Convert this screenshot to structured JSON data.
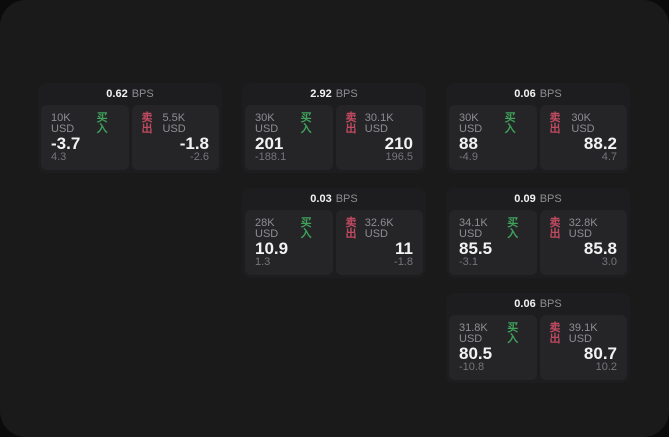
{
  "labels": {
    "bps_unit": "BPS",
    "buy": "买入",
    "sell": "卖出"
  },
  "colors": {
    "buy_green": "#3fa15a",
    "sell_red": "#c04a60",
    "page_bg": "#1a1a1b",
    "card_bg": "#1d1d1f",
    "panel_bg": "#252528"
  },
  "cards": [
    {
      "bps": "0.62",
      "buy": {
        "amount": "10K USD",
        "price": "-3.7",
        "delta": "4.3"
      },
      "sell": {
        "amount": "5.5K USD",
        "price": "-1.8",
        "delta": "-2.6"
      }
    },
    {
      "bps": "2.92",
      "buy": {
        "amount": "30K USD",
        "price": "201",
        "delta": "-188.1"
      },
      "sell": {
        "amount": "30.1K USD",
        "price": "210",
        "delta": "196.5"
      }
    },
    {
      "bps": "0.06",
      "buy": {
        "amount": "30K USD",
        "price": "88",
        "delta": "-4.9"
      },
      "sell": {
        "amount": "30K USD",
        "price": "88.2",
        "delta": "4.7"
      }
    },
    {
      "bps": "0.03",
      "buy": {
        "amount": "28K USD",
        "price": "10.9",
        "delta": "1.3"
      },
      "sell": {
        "amount": "32.6K USD",
        "price": "11",
        "delta": "-1.8"
      }
    },
    {
      "bps": "0.09",
      "buy": {
        "amount": "34.1K USD",
        "price": "85.5",
        "delta": "-3.1"
      },
      "sell": {
        "amount": "32.8K USD",
        "price": "85.8",
        "delta": "3.0"
      }
    },
    {
      "bps": "0.06",
      "buy": {
        "amount": "31.8K USD",
        "price": "80.5",
        "delta": "-10.8"
      },
      "sell": {
        "amount": "39.1K USD",
        "price": "80.7",
        "delta": "10.2"
      }
    }
  ]
}
